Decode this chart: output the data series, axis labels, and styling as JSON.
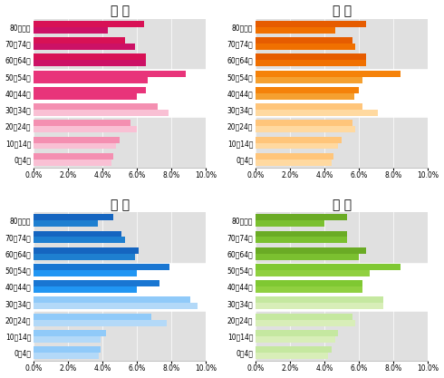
{
  "age_labels": [
    "80歳以上",
    "70〜74歳",
    "60〜64歳",
    "50〜54歳",
    "40〜44歳",
    "30〜34歳",
    "20〜24歳",
    "10〜14歳",
    "0〜4歳"
  ],
  "hiroshima": {
    "title": "広 島",
    "upper": [
      6.4,
      5.3,
      6.5,
      8.8,
      6.5,
      7.2,
      5.6,
      5.0,
      4.6
    ],
    "lower": [
      4.3,
      5.9,
      6.5,
      6.6,
      6.0,
      7.8,
      6.0,
      4.8,
      4.5
    ],
    "upper_colors": [
      "#d81155",
      "#d81155",
      "#d81155",
      "#e8347a",
      "#e8347a",
      "#f48fb1",
      "#f48fb1",
      "#f48fb1",
      "#f48fb1"
    ],
    "lower_colors": [
      "#cc1166",
      "#cc1166",
      "#cc1166",
      "#e8347a",
      "#e8347a",
      "#f9c0d4",
      "#f9c0d4",
      "#f9c0d4",
      "#f9c0d4"
    ]
  },
  "okayama": {
    "title": "岡 山",
    "upper": [
      6.4,
      5.6,
      6.4,
      8.4,
      6.0,
      6.2,
      5.6,
      5.0,
      4.5
    ],
    "lower": [
      4.6,
      5.8,
      6.4,
      6.2,
      5.7,
      7.1,
      5.8,
      4.8,
      4.4
    ],
    "upper_colors": [
      "#e65c00",
      "#e65c00",
      "#e65c00",
      "#f5820a",
      "#f5820a",
      "#ffc57a",
      "#ffc57a",
      "#ffc57a",
      "#ffc57a"
    ],
    "lower_colors": [
      "#f07000",
      "#f07000",
      "#f07000",
      "#f5a030",
      "#f5a030",
      "#ffd9a0",
      "#ffd9a0",
      "#ffd9a0",
      "#ffd9a0"
    ]
  },
  "tokyo": {
    "title": "東 京",
    "upper": [
      4.6,
      5.1,
      6.1,
      7.9,
      7.3,
      9.1,
      6.8,
      4.2,
      3.9
    ],
    "lower": [
      3.7,
      5.3,
      5.9,
      6.0,
      6.0,
      9.5,
      7.7,
      3.9,
      3.8
    ],
    "upper_colors": [
      "#1565c0",
      "#1565c0",
      "#1565c0",
      "#1976d2",
      "#1976d2",
      "#90caf9",
      "#90caf9",
      "#90caf9",
      "#90caf9"
    ],
    "lower_colors": [
      "#1e7fd0",
      "#1e7fd0",
      "#1e7fd0",
      "#2196f3",
      "#2196f3",
      "#b3d9f8",
      "#b3d9f8",
      "#b3d9f8",
      "#b3d9f8"
    ]
  },
  "zenkoku": {
    "title": "全 国",
    "upper": [
      5.3,
      5.3,
      6.4,
      8.4,
      6.2,
      7.4,
      5.6,
      4.8,
      4.4
    ],
    "lower": [
      4.0,
      5.3,
      6.0,
      6.6,
      6.2,
      7.4,
      5.8,
      4.6,
      4.2
    ],
    "upper_colors": [
      "#6aab25",
      "#6aab25",
      "#6aab25",
      "#7fc832",
      "#7fc832",
      "#c5e8a0",
      "#c5e8a0",
      "#c5e8a0",
      "#c5e8a0"
    ],
    "lower_colors": [
      "#7bc030",
      "#7bc030",
      "#7bc030",
      "#90d040",
      "#90d040",
      "#d8eeb8",
      "#d8eeb8",
      "#d8eeb8",
      "#d8eeb8"
    ]
  },
  "xlim": [
    0,
    10.0
  ],
  "xticks": [
    0,
    2.0,
    4.0,
    6.0,
    8.0,
    10.0
  ],
  "xtick_labels": [
    "0.0%",
    "2.0%",
    "4.0%",
    "6.0%",
    "8.0%",
    "10.0%"
  ],
  "bg_color": "#e0e0e0",
  "title_fontsize": 9
}
